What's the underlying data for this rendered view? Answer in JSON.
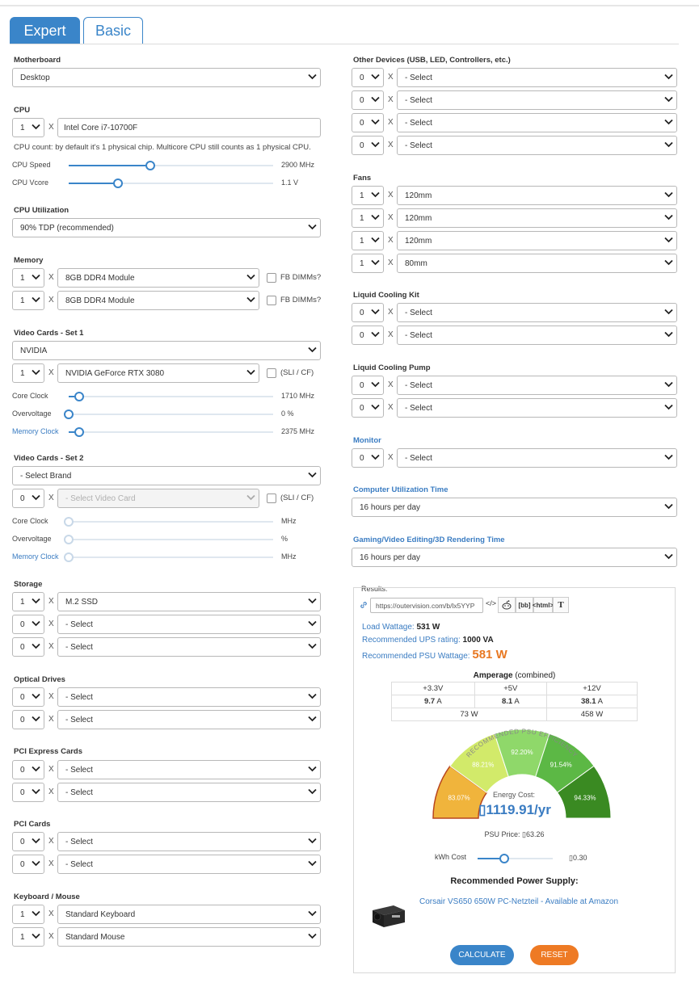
{
  "tabs": {
    "expert": "Expert",
    "basic": "Basic"
  },
  "common": {
    "x": "X",
    "chevron_icon": "chevron-down-icon"
  },
  "motherboard": {
    "label": "Motherboard",
    "value": "Desktop"
  },
  "cpu": {
    "label": "CPU",
    "count": "1",
    "model": "Intel Core i7-10700F",
    "note": "CPU count: by default it's 1 physical chip. Multicore CPU still counts as 1 physical CPU.",
    "speed_label": "CPU Speed",
    "speed_value": "2900 MHz",
    "speed_level": 0.4,
    "vcore_label": "CPU Vcore",
    "vcore_value": "1.1 V",
    "vcore_level": 0.24
  },
  "cpu_util": {
    "label": "CPU Utilization",
    "value": "90% TDP (recommended)"
  },
  "memory": {
    "label": "Memory",
    "rows": [
      {
        "count": "1",
        "type": "8GB DDR4 Module",
        "check": "FB DIMMs?"
      },
      {
        "count": "1",
        "type": "8GB DDR4 Module",
        "check": "FB DIMMs?"
      }
    ]
  },
  "video1": {
    "label": "Video Cards - Set 1",
    "brand": "NVIDIA",
    "count": "1",
    "card": "NVIDIA GeForce RTX 3080",
    "check": "(SLI / CF)",
    "core_label": "Core Clock",
    "core_value": "1710 MHz",
    "core_level": 0.05,
    "ov_label": "Overvoltage",
    "ov_value": "0 %",
    "ov_level": 0.0,
    "mem_label": "Memory Clock",
    "mem_value": "2375 MHz",
    "mem_level": 0.05
  },
  "video2": {
    "label": "Video Cards - Set 2",
    "brand": "- Select Brand",
    "count": "0",
    "card": "- Select Video Card",
    "check": "(SLI / CF)",
    "core_label": "Core Clock",
    "core_value": "MHz",
    "ov_label": "Overvoltage",
    "ov_value": "%",
    "mem_label": "Memory Clock",
    "mem_value": "MHz"
  },
  "storage": {
    "label": "Storage",
    "rows": [
      {
        "count": "1",
        "value": "M.2 SSD"
      },
      {
        "count": "0",
        "value": "- Select"
      },
      {
        "count": "0",
        "value": "- Select"
      }
    ]
  },
  "optical": {
    "label": "Optical Drives",
    "rows": [
      {
        "count": "0",
        "value": "- Select"
      },
      {
        "count": "0",
        "value": "- Select"
      }
    ]
  },
  "pcie": {
    "label": "PCI Express Cards",
    "rows": [
      {
        "count": "0",
        "value": "- Select"
      },
      {
        "count": "0",
        "value": "- Select"
      }
    ]
  },
  "pci": {
    "label": "PCI Cards",
    "rows": [
      {
        "count": "0",
        "value": "- Select"
      },
      {
        "count": "0",
        "value": "- Select"
      }
    ]
  },
  "keyboard": {
    "label": "Keyboard / Mouse",
    "rows": [
      {
        "count": "1",
        "value": "Standard Keyboard"
      },
      {
        "count": "1",
        "value": "Standard Mouse"
      }
    ]
  },
  "other": {
    "label": "Other Devices (USB, LED, Controllers, etc.)",
    "rows": [
      {
        "count": "0",
        "value": "- Select"
      },
      {
        "count": "0",
        "value": "- Select"
      },
      {
        "count": "0",
        "value": "- Select"
      },
      {
        "count": "0",
        "value": "- Select"
      }
    ]
  },
  "fans": {
    "label": "Fans",
    "rows": [
      {
        "count": "1",
        "value": "120mm"
      },
      {
        "count": "1",
        "value": "120mm"
      },
      {
        "count": "1",
        "value": "120mm"
      },
      {
        "count": "1",
        "value": "80mm"
      }
    ]
  },
  "liquid_kit": {
    "label": "Liquid Cooling Kit",
    "rows": [
      {
        "count": "0",
        "value": "- Select"
      },
      {
        "count": "0",
        "value": "- Select"
      }
    ]
  },
  "liquid_pump": {
    "label": "Liquid Cooling Pump",
    "rows": [
      {
        "count": "0",
        "value": "- Select"
      },
      {
        "count": "0",
        "value": "- Select"
      }
    ]
  },
  "monitor": {
    "label": "Monitor",
    "count": "0",
    "value": "- Select"
  },
  "util_time": {
    "label": "Computer Utilization Time",
    "value": "16 hours per day"
  },
  "gaming_time": {
    "label": "Gaming/Video Editing/3D Rendering Time",
    "value": "16 hours per day"
  },
  "results": {
    "legend": "Results:",
    "url": "https://outervision.com/b/lx5YYP",
    "share": {
      "embed": "</>",
      "bb": "[bb]",
      "html": "<html>",
      "text": "T"
    },
    "load_label": "Load Wattage:",
    "load_value": "531 W",
    "ups_label": "Recommended UPS rating:",
    "ups_value": "1000 VA",
    "psu_label": "Recommended PSU Wattage:",
    "psu_value": "581 W",
    "amp_title": "Amperage",
    "amp_note": "(combined)",
    "amp": {
      "h33": "+3.3V",
      "h5": "+5V",
      "h12": "+12V",
      "v33": "9.7",
      "v5": "8.1",
      "v12": "38.1",
      "unit": "A",
      "w_small": "73 W",
      "w_12": "458 W"
    },
    "efficiency_title": "RECOMMENDED PSU EFFICIENCY",
    "efficiency": [
      "83.07%",
      "88.21%",
      "92.20%",
      "91.54%",
      "94.33%"
    ],
    "efficiency_colors": [
      "#f0b43c",
      "#d2ea6a",
      "#8fd86a",
      "#5cb845",
      "#3a8a22"
    ],
    "energy_label": "Energy Cost:",
    "energy_value": "▯1119.91/yr",
    "psu_price": "PSU Price: ▯63.26",
    "kwh_label": "kWh Cost",
    "kwh_value": "▯0.30",
    "kwh_level": 0.35,
    "rec_title": "Recommended Power Supply:",
    "rec_link": "Corsair VS650 650W PC-Netzteil - Available at Amazon",
    "calculate": "CALCULATE",
    "reset": "RESET"
  }
}
